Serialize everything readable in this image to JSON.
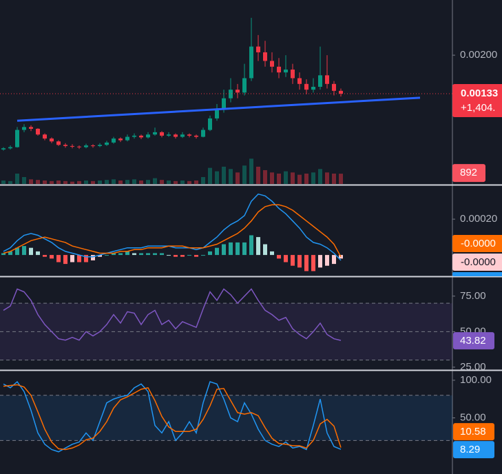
{
  "chart_data": [
    {
      "type": "candlestick",
      "open": [
        0.00036,
        0.00038,
        0.0004,
        0.0007,
        0.00075,
        0.00072,
        0.00062,
        0.00055,
        0.0005,
        0.00044,
        0.00042,
        0.00041,
        0.0004,
        0.00043,
        0.00042,
        0.00044,
        0.00048,
        0.00055,
        0.00052,
        0.00058,
        0.0006,
        0.00057,
        0.00062,
        0.00066,
        0.0006,
        0.00062,
        0.00058,
        0.00062,
        0.0006,
        0.00058,
        0.0007,
        0.0009,
        0.00105,
        0.00125,
        0.0014,
        0.00135,
        0.0016,
        0.00215,
        0.00205,
        0.0019,
        0.0018,
        0.0017,
        0.00175,
        0.0016,
        0.0015,
        0.0014,
        0.00145,
        0.00165,
        0.0015,
        0.00138
      ],
      "high": [
        0.0004,
        0.00043,
        0.00075,
        0.0008,
        0.00078,
        0.00073,
        0.00064,
        0.00057,
        0.00052,
        0.00047,
        0.00045,
        0.00043,
        0.00046,
        0.00045,
        0.00047,
        0.00051,
        0.00058,
        0.00057,
        0.00062,
        0.00064,
        0.00062,
        0.00066,
        0.00074,
        0.00068,
        0.00066,
        0.00064,
        0.00066,
        0.00064,
        0.00062,
        0.00074,
        0.00095,
        0.00115,
        0.0014,
        0.0016,
        0.0015,
        0.00185,
        0.00265,
        0.00235,
        0.00225,
        0.00205,
        0.00195,
        0.002,
        0.00185,
        0.0017,
        0.00158,
        0.0016,
        0.00215,
        0.002,
        0.00155,
        0.00142
      ],
      "low": [
        0.00034,
        0.00036,
        0.00039,
        0.00066,
        0.00068,
        0.0006,
        0.00052,
        0.00047,
        0.00042,
        0.00039,
        0.00038,
        0.00037,
        0.00038,
        0.00039,
        0.0004,
        0.00042,
        0.00046,
        0.00049,
        0.0005,
        0.00055,
        0.00054,
        0.00055,
        0.0006,
        0.00057,
        0.00058,
        0.00055,
        0.00056,
        0.00057,
        0.00055,
        0.00057,
        0.00068,
        0.00086,
        0.001,
        0.00118,
        0.00125,
        0.0013,
        0.00155,
        0.0019,
        0.0018,
        0.0017,
        0.0016,
        0.00162,
        0.0015,
        0.0014,
        0.00132,
        0.00135,
        0.0014,
        0.00142,
        0.0013,
        0.00128
      ],
      "close": [
        0.00038,
        0.0004,
        0.0007,
        0.00075,
        0.00072,
        0.00062,
        0.00055,
        0.0005,
        0.00044,
        0.00042,
        0.00041,
        0.0004,
        0.00043,
        0.00042,
        0.00044,
        0.00048,
        0.00055,
        0.00052,
        0.00058,
        0.0006,
        0.00057,
        0.00062,
        0.00066,
        0.0006,
        0.00062,
        0.00058,
        0.00062,
        0.0006,
        0.00058,
        0.0007,
        0.0009,
        0.00105,
        0.00125,
        0.0014,
        0.00135,
        0.0016,
        0.00215,
        0.00205,
        0.0019,
        0.0018,
        0.0017,
        0.00175,
        0.0016,
        0.0015,
        0.0014,
        0.00145,
        0.00165,
        0.0015,
        0.00138,
        0.00133
      ],
      "volume": [
        300,
        250,
        900,
        600,
        400,
        350,
        300,
        250,
        300,
        250,
        200,
        250,
        300,
        250,
        300,
        350,
        400,
        300,
        350,
        400,
        300,
        350,
        500,
        350,
        300,
        250,
        300,
        250,
        300,
        600,
        1400,
        1100,
        1500,
        1300,
        1000,
        1600,
        2200,
        1500,
        1200,
        1000,
        900,
        1100,
        1000,
        800,
        900,
        1000,
        1300,
        1000,
        900,
        892
      ],
      "volume_lim": [
        0,
        16000
      ],
      "up_color": "#089981",
      "down_color": "#f23645",
      "ylim": [
        -0.00024,
        0.00296
      ],
      "yticks": [
        {
          "value": 0.002,
          "label": "0.00200"
        }
      ],
      "change_label": "+1,404.",
      "trendline": {
        "x": [
          2,
          60.5
        ],
        "y": [
          0.00086,
          0.00126
        ],
        "color": "#2962ff"
      }
    },
    {
      "type": "macd",
      "macd": {
        "color": "#2196f3",
        "values": [
          2e-05,
          4e-05,
          8e-05,
          0.00011,
          0.00012,
          0.00011,
          9e-05,
          7e-05,
          4e-05,
          2e-05,
          1e-05,
          0,
          -1e-05,
          -1e-05,
          0,
          1e-05,
          2e-05,
          3e-05,
          4e-05,
          4e-05,
          4e-05,
          5e-05,
          5e-05,
          5e-05,
          5e-05,
          4e-05,
          4e-05,
          4e-05,
          3e-05,
          4e-05,
          7e-05,
          0.0001,
          0.00014,
          0.00017,
          0.00019,
          0.00022,
          0.0003,
          0.00034,
          0.00033,
          0.0003,
          0.00026,
          0.00023,
          0.00019,
          0.00015,
          0.0001,
          7e-05,
          6e-05,
          4e-05,
          1e-05,
          -3e-05
        ]
      },
      "signal": {
        "color": "#ff6d00",
        "last_label": "-0.0000",
        "values": [
          1e-05,
          2e-05,
          4e-05,
          6e-05,
          8e-05,
          9e-05,
          0.0001,
          9e-05,
          8e-05,
          7e-05,
          5e-05,
          4e-05,
          3e-05,
          2e-05,
          1e-05,
          1e-05,
          1e-05,
          2e-05,
          2e-05,
          3e-05,
          3e-05,
          4e-05,
          4e-05,
          4e-05,
          5e-05,
          5e-05,
          5e-05,
          4e-05,
          4e-05,
          4e-05,
          5e-05,
          6e-05,
          8e-05,
          0.0001,
          0.00012,
          0.00015,
          0.00019,
          0.00024,
          0.00027,
          0.00028,
          0.00028,
          0.00027,
          0.00025,
          0.00022,
          0.00019,
          0.00016,
          0.00013,
          0.0001,
          6e-05,
          -1e-05
        ]
      },
      "histogram": {
        "colors": [
          "#26a69a",
          "#b2dfdb",
          "#ffcdd2",
          "#ff5252"
        ],
        "last_label": "-0.0000",
        "values": [
          1e-05,
          2e-05,
          4e-05,
          5e-05,
          4e-05,
          2e-05,
          -1e-05,
          -2e-05,
          -4e-05,
          -5e-05,
          -4e-05,
          -4e-05,
          -4e-05,
          -3e-05,
          -1e-05,
          0,
          1e-05,
          1e-05,
          2e-05,
          1e-05,
          1e-05,
          1e-05,
          1e-05,
          1e-05,
          0,
          -1e-05,
          -1e-05,
          0,
          -1e-05,
          0,
          2e-05,
          4e-05,
          6e-05,
          7e-05,
          7e-05,
          7e-05,
          0.00011,
          0.0001,
          6e-05,
          2e-05,
          -2e-05,
          -4e-05,
          -6e-05,
          -7e-05,
          -9e-05,
          -9e-05,
          -7e-05,
          -6e-05,
          -5e-05,
          -2e-05
        ]
      },
      "ylim": [
        -0.000115,
        0.000385
      ],
      "yticks": [
        {
          "value": 0.0002,
          "label": "0.00020"
        }
      ]
    },
    {
      "type": "line",
      "series": [
        {
          "color": "#7e57c2",
          "values": [
            65,
            68,
            80,
            78,
            72,
            62,
            55,
            50,
            45,
            44,
            46,
            44,
            50,
            47,
            50,
            55,
            62,
            56,
            64,
            63,
            55,
            62,
            65,
            55,
            58,
            52,
            57,
            55,
            53,
            66,
            78,
            72,
            80,
            76,
            70,
            75,
            80,
            72,
            65,
            62,
            58,
            60,
            52,
            48,
            45,
            50,
            56,
            48,
            45,
            43.82
          ]
        }
      ],
      "ylim": [
        24,
        88
      ],
      "yticks": [
        {
          "value": 75,
          "label": "75.00"
        },
        {
          "value": 50,
          "label": "50.00"
        },
        {
          "value": 25,
          "label": "25.00"
        }
      ],
      "levels": [
        70,
        50,
        30
      ],
      "band": [
        30,
        70
      ],
      "band_color": "rgba(126,87,194,0.13)"
    },
    {
      "type": "line",
      "series": [
        {
          "color": "#2196f3",
          "values": [
            95,
            90,
            98,
            85,
            60,
            30,
            15,
            8,
            5,
            10,
            15,
            18,
            30,
            20,
            45,
            70,
            75,
            78,
            80,
            90,
            95,
            85,
            40,
            30,
            45,
            20,
            30,
            45,
            30,
            70,
            98,
            95,
            75,
            50,
            45,
            70,
            55,
            35,
            20,
            15,
            12,
            18,
            10,
            12,
            8,
            40,
            75,
            30,
            12,
            8.29
          ]
        },
        {
          "color": "#ff6d00",
          "values": [
            92,
            93,
            94,
            91,
            80,
            58,
            35,
            18,
            9,
            8,
            10,
            14,
            21,
            23,
            32,
            45,
            63,
            74,
            78,
            83,
            88,
            90,
            73,
            52,
            38,
            32,
            32,
            32,
            35,
            48,
            66,
            88,
            89,
            73,
            57,
            55,
            57,
            53,
            37,
            23,
            16,
            15,
            13,
            13,
            10,
            20,
            42,
            48,
            39,
            10.58
          ]
        }
      ],
      "ylim": [
        -24.5,
        111.8
      ],
      "yticks": [
        {
          "value": 100,
          "label": "100.00"
        },
        {
          "value": 50,
          "label": "50.00"
        }
      ],
      "levels": [
        80,
        20
      ],
      "band": [
        20,
        80
      ],
      "band_color": "rgba(33,150,243,0.12)"
    }
  ]
}
